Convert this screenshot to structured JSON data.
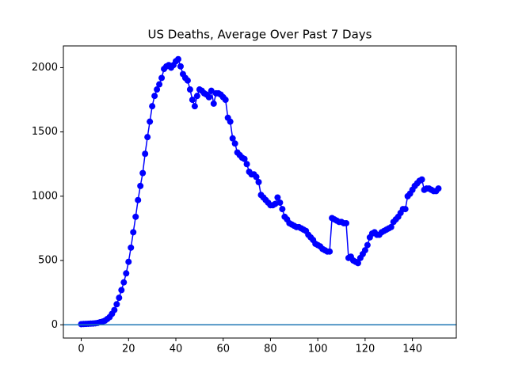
{
  "chart_data": {
    "type": "line",
    "title": "US Deaths, Average Over Past 7 Days",
    "x": [
      0,
      1,
      2,
      3,
      4,
      5,
      6,
      7,
      8,
      9,
      10,
      11,
      12,
      13,
      14,
      15,
      16,
      17,
      18,
      19,
      20,
      21,
      22,
      23,
      24,
      25,
      26,
      27,
      28,
      29,
      30,
      31,
      32,
      33,
      34,
      35,
      36,
      37,
      38,
      39,
      40,
      41,
      42,
      43,
      44,
      45,
      46,
      47,
      48,
      49,
      50,
      51,
      52,
      53,
      54,
      55,
      56,
      57,
      58,
      59,
      60,
      61,
      62,
      63,
      64,
      65,
      66,
      67,
      68,
      69,
      70,
      71,
      72,
      73,
      74,
      75,
      76,
      77,
      78,
      79,
      80,
      81,
      82,
      83,
      84,
      85,
      86,
      87,
      88,
      89,
      90,
      91,
      92,
      93,
      94,
      95,
      96,
      97,
      98,
      99,
      100,
      101,
      102,
      103,
      104,
      105,
      106,
      107,
      108,
      109,
      110,
      111,
      112,
      113,
      114,
      115,
      116,
      117,
      118,
      119,
      120,
      121,
      122,
      123,
      124,
      125,
      126,
      127,
      128,
      129,
      130,
      131,
      132,
      133,
      134,
      135,
      136,
      137,
      138,
      139,
      140,
      141,
      142,
      143,
      144,
      145,
      146,
      147,
      148,
      149,
      150,
      151
    ],
    "values": [
      5,
      6,
      7,
      8,
      9,
      10,
      12,
      15,
      20,
      25,
      32,
      45,
      60,
      85,
      115,
      160,
      210,
      270,
      330,
      400,
      490,
      600,
      720,
      840,
      970,
      1080,
      1180,
      1330,
      1460,
      1580,
      1700,
      1780,
      1830,
      1870,
      1920,
      1990,
      2010,
      2020,
      2000,
      2020,
      2050,
      2066,
      2010,
      1950,
      1920,
      1900,
      1830,
      1750,
      1700,
      1780,
      1830,
      1820,
      1800,
      1790,
      1770,
      1820,
      1720,
      1800,
      1800,
      1790,
      1770,
      1750,
      1610,
      1580,
      1450,
      1410,
      1340,
      1320,
      1300,
      1290,
      1250,
      1190,
      1170,
      1170,
      1150,
      1110,
      1010,
      990,
      970,
      950,
      930,
      930,
      940,
      990,
      950,
      900,
      840,
      820,
      790,
      780,
      770,
      760,
      760,
      750,
      740,
      730,
      700,
      680,
      660,
      630,
      620,
      610,
      590,
      580,
      570,
      570,
      830,
      820,
      810,
      800,
      800,
      790,
      790,
      520,
      530,
      500,
      490,
      480,
      520,
      550,
      580,
      620,
      680,
      710,
      720,
      700,
      700,
      720,
      730,
      740,
      750,
      760,
      800,
      820,
      840,
      870,
      900,
      900,
      1000,
      1020,
      1050,
      1080,
      1100,
      1120,
      1130,
      1050,
      1060,
      1060,
      1050,
      1040,
      1040,
      1060
    ],
    "color": "#0000ff",
    "hline": 0,
    "hline_color": "#1f77b4",
    "xlim": [
      -7.55,
      158.55
    ],
    "xticks": [
      0,
      20,
      40,
      60,
      80,
      100,
      120,
      140
    ],
    "ylim": [
      -103,
      2169
    ],
    "yticks": [
      0,
      500,
      1000,
      1500,
      2000
    ]
  }
}
